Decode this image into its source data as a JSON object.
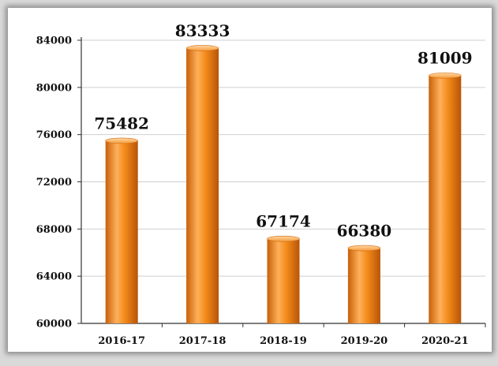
{
  "chart_data": {
    "type": "bar",
    "categories": [
      "2016-17",
      "2017-18",
      "2018-19",
      "2019-20",
      "2020-21"
    ],
    "values": [
      75482,
      83333,
      67174,
      66380,
      81009
    ],
    "data_labels": [
      "75482",
      "83333",
      "67174",
      "66380",
      "81009"
    ],
    "ylim": [
      60000,
      84000
    ],
    "yticks": [
      60000,
      64000,
      68000,
      72000,
      76000,
      80000,
      84000
    ],
    "ytick_labels": [
      "60000",
      "64000",
      "68000",
      "72000",
      "76000",
      "80000",
      "84000"
    ],
    "grid": true,
    "legend": "none",
    "colors": {
      "bar": "#f28a1a",
      "bar_dark": "#c8600a",
      "bar_light": "#ffc27a",
      "grid": "#cfcfcf"
    }
  }
}
